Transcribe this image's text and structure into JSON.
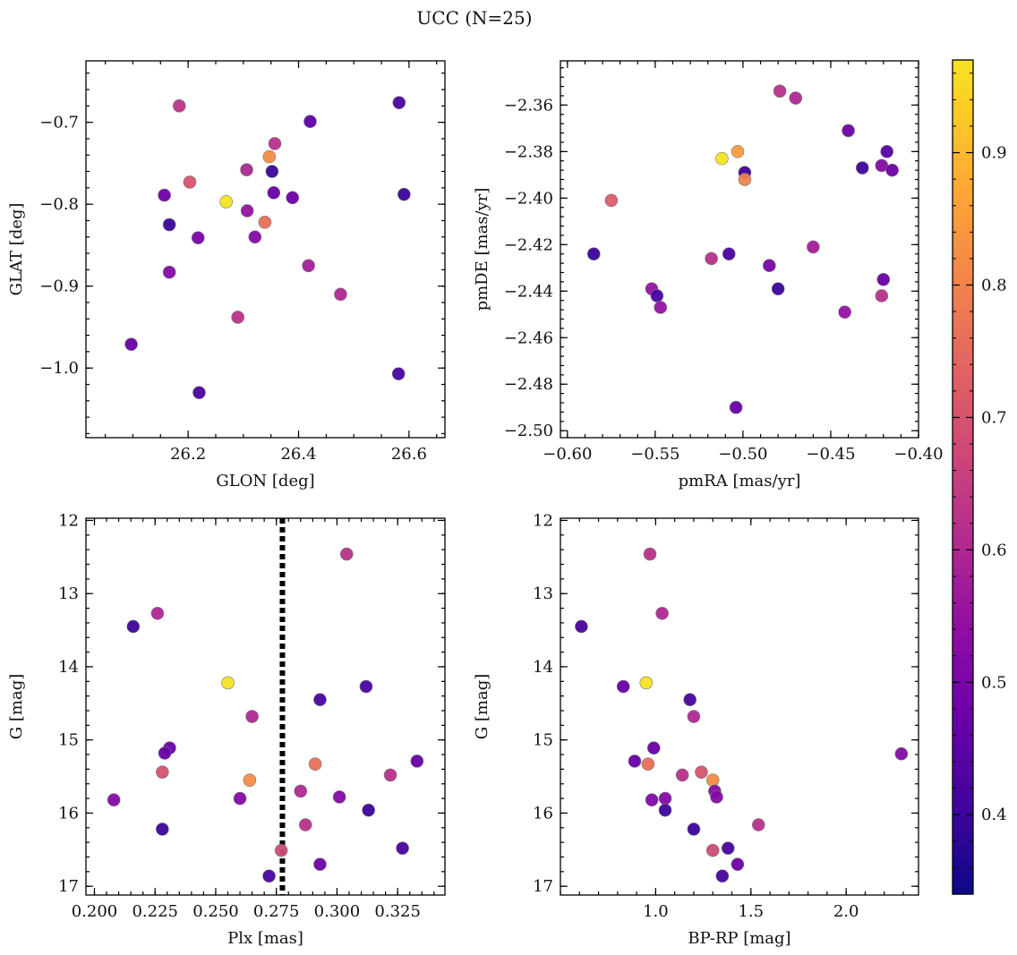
{
  "figure": {
    "title": "UCC (N=25)"
  },
  "colormap": {
    "name": "plasma",
    "range": [
      0.34,
      0.97
    ],
    "ticks": [
      0.4,
      0.5,
      0.6,
      0.7,
      0.8,
      0.9
    ]
  },
  "chart_data": [
    {
      "type": "scatter",
      "xlabel": "GLON [deg]",
      "ylabel": "GLAT [deg]",
      "xlim": [
        26.015,
        26.665
      ],
      "ylim": [
        -1.085,
        -0.625
      ],
      "y_inverted": false,
      "xticks": [
        26.2,
        26.4,
        26.6
      ],
      "yticks": [
        -1.0,
        -0.9,
        -0.8,
        -0.7
      ],
      "xtick_labels": [
        "26.2",
        "26.4",
        "26.6"
      ],
      "ytick_labels": [
        "−1.0",
        "−0.9",
        "−0.8",
        "−0.7"
      ],
      "x": [
        26.582,
        26.184,
        26.421,
        26.357,
        26.347,
        26.306,
        26.352,
        26.203,
        26.157,
        26.591,
        26.355,
        26.389,
        26.269,
        26.166,
        26.307,
        26.339,
        26.218,
        26.321,
        26.166,
        26.418,
        26.476,
        26.29,
        26.097,
        26.581,
        26.22
      ],
      "y": [
        -0.676,
        -0.68,
        -0.699,
        -0.726,
        -0.742,
        -0.758,
        -0.76,
        -0.773,
        -0.789,
        -0.788,
        -0.786,
        -0.792,
        -0.797,
        -0.825,
        -0.808,
        -0.822,
        -0.841,
        -0.84,
        -0.883,
        -0.875,
        -0.91,
        -0.938,
        -0.971,
        -1.007,
        -1.03
      ],
      "c": [
        0.42,
        0.63,
        0.45,
        0.62,
        0.82,
        0.6,
        0.4,
        0.7,
        0.48,
        0.4,
        0.47,
        0.48,
        0.97,
        0.4,
        0.55,
        0.76,
        0.5,
        0.52,
        0.52,
        0.58,
        0.6,
        0.62,
        0.47,
        0.42,
        0.42
      ]
    },
    {
      "type": "scatter",
      "xlabel": "pmRA [mas/yr]",
      "ylabel": "pmDE [mas/yr]",
      "xlim": [
        -0.604,
        -0.4
      ],
      "ylim": [
        -2.503,
        -2.341
      ],
      "y_inverted": false,
      "xticks": [
        -0.6,
        -0.55,
        -0.5,
        -0.45,
        -0.4
      ],
      "yticks": [
        -2.5,
        -2.48,
        -2.46,
        -2.44,
        -2.42,
        -2.4,
        -2.38,
        -2.36
      ],
      "xtick_labels": [
        "−0.60",
        "−0.55",
        "−0.50",
        "−0.45",
        "−0.40"
      ],
      "ytick_labels": [
        "−2.50",
        "−2.48",
        "−2.46",
        "−2.44",
        "−2.42",
        "−2.40",
        "−2.38",
        "−2.36"
      ],
      "x": [
        -0.479,
        -0.47,
        -0.44,
        -0.418,
        -0.503,
        -0.512,
        -0.421,
        -0.432,
        -0.415,
        -0.499,
        -0.499,
        -0.575,
        -0.46,
        -0.585,
        -0.508,
        -0.518,
        -0.485,
        -0.42,
        -0.48,
        -0.552,
        -0.549,
        -0.421,
        -0.547,
        -0.442,
        -0.504
      ],
      "y": [
        -2.354,
        -2.357,
        -2.371,
        -2.38,
        -2.38,
        -2.383,
        -2.386,
        -2.387,
        -2.388,
        -2.389,
        -2.392,
        -2.401,
        -2.421,
        -2.424,
        -2.424,
        -2.426,
        -2.429,
        -2.435,
        -2.439,
        -2.439,
        -2.442,
        -2.442,
        -2.447,
        -2.449,
        -2.49
      ],
      "c": [
        0.62,
        0.6,
        0.48,
        0.45,
        0.85,
        0.97,
        0.52,
        0.4,
        0.48,
        0.4,
        0.8,
        0.72,
        0.58,
        0.4,
        0.42,
        0.62,
        0.5,
        0.47,
        0.4,
        0.55,
        0.42,
        0.62,
        0.55,
        0.55,
        0.47
      ]
    },
    {
      "type": "scatter",
      "xlabel": "Plx [mas]",
      "ylabel": "G [mag]",
      "xlim": [
        0.1965,
        0.3445
      ],
      "ylim": [
        17.12,
        11.97
      ],
      "y_inverted": true,
      "xticks": [
        0.2,
        0.225,
        0.25,
        0.275,
        0.3,
        0.325
      ],
      "yticks": [
        12,
        13,
        14,
        15,
        16,
        17
      ],
      "xtick_labels": [
        "0.200",
        "0.225",
        "0.250",
        "0.275",
        "0.300",
        "0.325"
      ],
      "ytick_labels": [
        "12",
        "13",
        "14",
        "15",
        "16",
        "17"
      ],
      "vline": 0.2775,
      "x": [
        0.304,
        0.226,
        0.216,
        0.255,
        0.312,
        0.293,
        0.265,
        0.231,
        0.229,
        0.291,
        0.333,
        0.322,
        0.228,
        0.264,
        0.285,
        0.208,
        0.26,
        0.301,
        0.313,
        0.287,
        0.228,
        0.277,
        0.327,
        0.293,
        0.272
      ],
      "y": [
        12.46,
        13.27,
        13.45,
        14.22,
        14.27,
        14.45,
        14.68,
        15.11,
        15.18,
        15.33,
        15.29,
        15.48,
        15.44,
        15.55,
        15.7,
        15.82,
        15.8,
        15.78,
        15.96,
        16.16,
        16.22,
        16.51,
        16.48,
        16.7,
        16.86
      ],
      "c": [
        0.62,
        0.6,
        0.4,
        0.97,
        0.42,
        0.42,
        0.6,
        0.47,
        0.47,
        0.76,
        0.47,
        0.62,
        0.7,
        0.82,
        0.6,
        0.52,
        0.52,
        0.52,
        0.4,
        0.62,
        0.4,
        0.68,
        0.42,
        0.48,
        0.42
      ]
    },
    {
      "type": "scatter",
      "xlabel": "BP-RP [mag]",
      "ylabel": "G [mag]",
      "xlim": [
        0.5,
        2.38
      ],
      "ylim": [
        17.12,
        11.97
      ],
      "y_inverted": true,
      "xticks": [
        1.0,
        1.5,
        2.0
      ],
      "yticks": [
        12,
        13,
        14,
        15,
        16,
        17
      ],
      "xtick_labels": [
        "1.0",
        "1.5",
        "2.0"
      ],
      "ytick_labels": [
        "12",
        "13",
        "14",
        "15",
        "16",
        "17"
      ],
      "x": [
        0.97,
        1.034,
        0.61,
        0.95,
        0.83,
        1.18,
        1.2,
        0.99,
        0.89,
        0.96,
        2.29,
        1.14,
        1.24,
        1.3,
        1.31,
        0.98,
        1.05,
        1.32,
        1.05,
        1.54,
        1.2,
        1.3,
        1.38,
        1.43,
        1.35
      ],
      "y": [
        12.46,
        13.27,
        13.45,
        14.22,
        14.27,
        14.45,
        14.68,
        15.11,
        15.29,
        15.33,
        15.19,
        15.48,
        15.44,
        15.55,
        15.7,
        15.82,
        15.8,
        15.78,
        15.96,
        16.16,
        16.22,
        16.51,
        16.48,
        16.7,
        16.86
      ],
      "c": [
        0.62,
        0.6,
        0.42,
        0.97,
        0.47,
        0.42,
        0.6,
        0.47,
        0.47,
        0.76,
        0.52,
        0.62,
        0.7,
        0.82,
        0.52,
        0.52,
        0.52,
        0.52,
        0.4,
        0.62,
        0.4,
        0.68,
        0.42,
        0.48,
        0.42
      ]
    }
  ]
}
